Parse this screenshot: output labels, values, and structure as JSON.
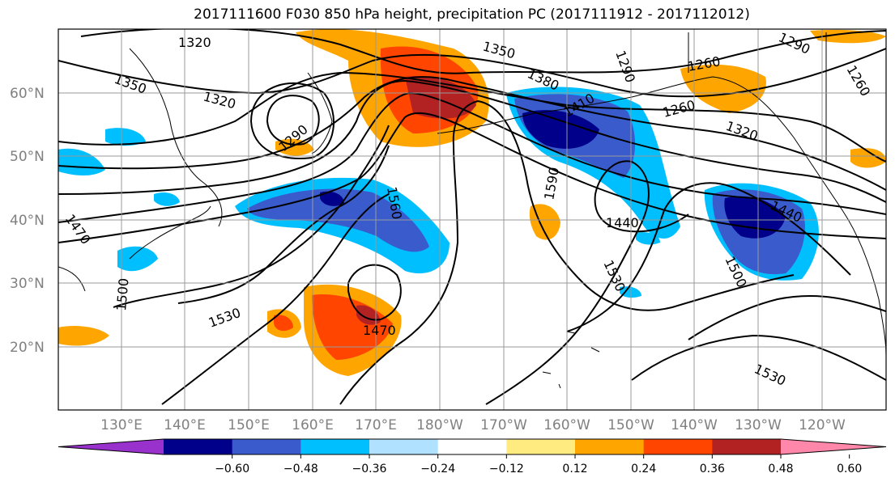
{
  "title": "2017111600 F030 850 hPa height, precipitation PC (2017111912 - 2017112012)",
  "map": {
    "lat_ticks": [
      "60°N",
      "50°N",
      "40°N",
      "30°N",
      "20°N"
    ],
    "lon_ticks": [
      "130°E",
      "140°E",
      "150°E",
      "160°E",
      "170°E",
      "180°W",
      "170°W",
      "160°W",
      "150°W",
      "140°W",
      "130°W",
      "120°W"
    ],
    "contour_labels": [
      "1320",
      "1350",
      "1320",
      "1290",
      "1350",
      "1380",
      "1290",
      "1260",
      "1260",
      "1290",
      "1260",
      "1320",
      "1410",
      "1560",
      "1590",
      "1440",
      "1440",
      "1470",
      "1500",
      "1530",
      "1470",
      "1500",
      "1530",
      "1530"
    ]
  },
  "colorbar": {
    "colors": [
      "#9932CC",
      "#00008B",
      "#3A5BCC",
      "#00BFFF",
      "#B0E2FF",
      "#FFFFFF",
      "#FFEB80",
      "#FFA500",
      "#FF4500",
      "#B22222",
      "#FF88AA"
    ],
    "labels": [
      "−0.60",
      "−0.48",
      "−0.36",
      "−0.24",
      "−0.12",
      "0.12",
      "0.24",
      "0.36",
      "0.48",
      "0.60"
    ]
  }
}
